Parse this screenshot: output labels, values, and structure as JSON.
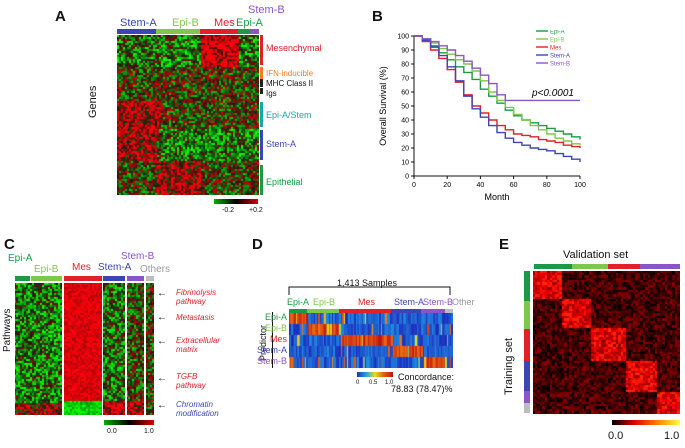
{
  "colors": {
    "epi_a": "#1a9a46",
    "epi_b": "#7fc74a",
    "mes": "#e0202a",
    "stem_a": "#3b45b5",
    "stem_b": "#8a55c8",
    "others": "#bdbdbd",
    "orange": "#f07d1e",
    "teal": "#1aa5a5"
  },
  "panel_a": {
    "label": "A",
    "groups": [
      "Stem-A",
      "Epi-B",
      "Mes",
      "Epi-A",
      "Stem-B"
    ],
    "y_axis": "Genes",
    "modules": [
      "Mesenchymal",
      "IFN-inducible",
      "MHC Class II",
      "Igs",
      "Epi-A/Stem",
      "Stem-A",
      "Epithelial"
    ],
    "scale_min": "-0.2",
    "scale_max": "+0.2"
  },
  "panel_b": {
    "label": "B",
    "pvalue": "p<0.0001",
    "chart_data": {
      "type": "line",
      "title": "",
      "xlabel": "Month",
      "ylabel": "Overall Survival (%)",
      "xlim": [
        0,
        100
      ],
      "ylim": [
        0,
        100
      ],
      "xticks": [
        0,
        20,
        40,
        60,
        80,
        100
      ],
      "yticks": [
        0,
        10,
        20,
        30,
        40,
        50,
        60,
        70,
        80,
        90,
        100
      ],
      "legend_position": "top-right",
      "series": [
        {
          "name": "Epi-A",
          "color": "#1a9a46",
          "x": [
            0,
            5,
            10,
            15,
            20,
            25,
            30,
            35,
            40,
            45,
            50,
            55,
            60,
            65,
            70,
            75,
            80,
            85,
            90,
            95,
            100
          ],
          "y": [
            100,
            97,
            93,
            88,
            83,
            78,
            74,
            69,
            62,
            57,
            52,
            47,
            43,
            40,
            38,
            36,
            34,
            32,
            30,
            28,
            26
          ]
        },
        {
          "name": "Epi-B",
          "color": "#7fc74a",
          "x": [
            0,
            5,
            10,
            15,
            20,
            25,
            30,
            35,
            40,
            45,
            50,
            55,
            60,
            65,
            70,
            75,
            80,
            85,
            90,
            95,
            100
          ],
          "y": [
            100,
            98,
            95,
            91,
            87,
            83,
            80,
            75,
            68,
            60,
            54,
            49,
            44,
            40,
            36,
            33,
            30,
            27,
            25,
            23,
            22
          ]
        },
        {
          "name": "Mes",
          "color": "#e0202a",
          "x": [
            0,
            5,
            10,
            15,
            20,
            25,
            30,
            35,
            40,
            45,
            50,
            55,
            60,
            65,
            70,
            75,
            80,
            85,
            90,
            95,
            100
          ],
          "y": [
            100,
            96,
            90,
            84,
            76,
            67,
            58,
            50,
            45,
            40,
            36,
            33,
            30,
            29,
            28,
            26,
            25,
            24,
            22,
            21,
            20
          ]
        },
        {
          "name": "Stem-A",
          "color": "#3b45b5",
          "x": [
            0,
            5,
            10,
            15,
            20,
            25,
            30,
            35,
            40,
            45,
            50,
            55,
            60,
            65,
            70,
            75,
            80,
            85,
            90,
            95,
            100
          ],
          "y": [
            100,
            97,
            92,
            86,
            78,
            68,
            57,
            48,
            42,
            36,
            31,
            27,
            24,
            22,
            20,
            19,
            18,
            16,
            14,
            12,
            10
          ]
        },
        {
          "name": "Stem-B",
          "color": "#8a55c8",
          "x": [
            0,
            5,
            10,
            15,
            20,
            25,
            30,
            35,
            40,
            45,
            50,
            55,
            60,
            65,
            70,
            75,
            80,
            85,
            90,
            95,
            100
          ],
          "y": [
            100,
            98,
            96,
            93,
            90,
            86,
            82,
            77,
            72,
            66,
            58,
            54,
            54,
            54,
            54,
            54,
            54,
            54,
            54,
            54,
            54
          ]
        }
      ]
    }
  },
  "panel_c": {
    "label": "C",
    "groups": [
      "Epi-A",
      "Epi-B",
      "Mes",
      "Stem-A",
      "Stem-B",
      "Others"
    ],
    "y_axis": "Pathways",
    "pathways": [
      "Fibrinolysis pathway",
      "Metastasis",
      "Extracellular matrix",
      "TGFB pathway",
      "Chromatin modification"
    ],
    "scale_min": "0.0",
    "scale_max": "1.0"
  },
  "panel_d": {
    "label": "D",
    "samples": "1,413 Samples",
    "top_groups": [
      "Epi-A",
      "Epi-B",
      "Mes",
      "Stem-A",
      "Stem-B",
      "Other"
    ],
    "predictor_label": "Predictor",
    "rows": [
      "Epi-A",
      "Epi-B",
      "Mes",
      "Stem-A",
      "Stem-B"
    ],
    "scale_ticks": [
      "0",
      "0.5",
      "1.0"
    ],
    "concordance_label": "Concordance:",
    "concordance_value": "78.83 (78.47)%"
  },
  "panel_e": {
    "label": "E",
    "top_label": "Validation set",
    "side_label": "Training set",
    "scale_min": "0.0",
    "scale_max": "1.0"
  }
}
